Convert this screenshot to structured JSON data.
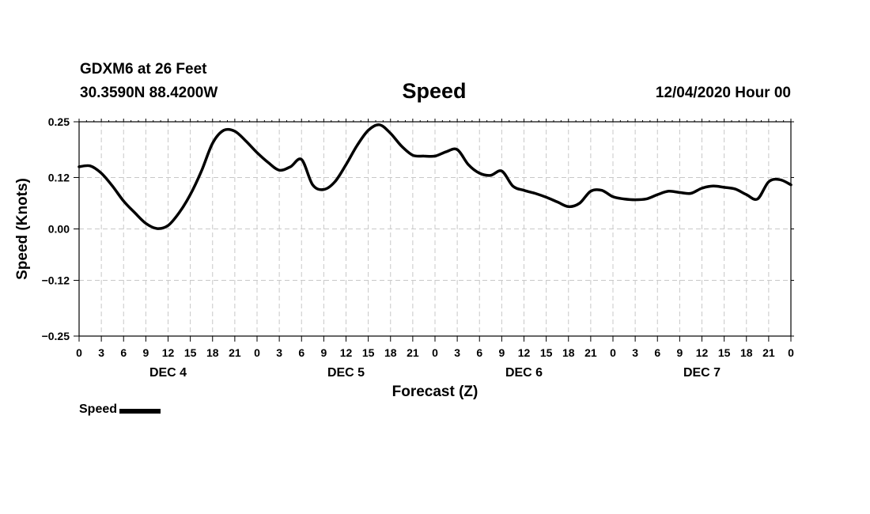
{
  "header": {
    "station": "GDXM6 at 26 Feet",
    "coords": "30.3590N 88.4200W",
    "title": "Speed",
    "runtime": "12/04/2020 Hour 00"
  },
  "legend": {
    "label": "Speed",
    "color": "#000000"
  },
  "chart_data": {
    "type": "line",
    "title": "Speed",
    "xlabel": "Forecast (Z)",
    "ylabel": "Speed (Knots)",
    "xlim": [
      0,
      96
    ],
    "ylim": [
      -0.25,
      0.25
    ],
    "yticks": [
      -0.25,
      -0.12,
      0.0,
      0.12,
      0.25
    ],
    "ytick_labels": [
      "−0.25",
      "−0.12",
      "0.00",
      "0.12",
      "0.25"
    ],
    "xticks": [
      0,
      3,
      6,
      9,
      12,
      15,
      18,
      21,
      24,
      27,
      30,
      33,
      36,
      39,
      42,
      45,
      48,
      51,
      54,
      57,
      60,
      63,
      66,
      69,
      72,
      75,
      78,
      81,
      84,
      87,
      90,
      93,
      96
    ],
    "xtick_labels": [
      "0",
      "3",
      "6",
      "9",
      "12",
      "15",
      "18",
      "21",
      "0",
      "3",
      "6",
      "9",
      "12",
      "15",
      "18",
      "21",
      "0",
      "3",
      "6",
      "9",
      "12",
      "15",
      "18",
      "21",
      "0",
      "3",
      "6",
      "9",
      "12",
      "15",
      "18",
      "21",
      "0"
    ],
    "day_labels": [
      {
        "label": "DEC 4",
        "x": 12
      },
      {
        "label": "DEC 5",
        "x": 36
      },
      {
        "label": "DEC 6",
        "x": 60
      },
      {
        "label": "DEC 7",
        "x": 84
      }
    ],
    "grid": true,
    "series": [
      {
        "name": "Speed",
        "x": [
          0,
          1.5,
          3,
          4.5,
          6,
          7.5,
          9,
          10.5,
          12,
          13.5,
          15,
          16.5,
          18,
          19.5,
          21,
          22.5,
          24,
          25.5,
          27,
          28.5,
          30,
          31.5,
          33,
          34.5,
          36,
          37.5,
          39,
          40.5,
          42,
          43.5,
          45,
          46.5,
          48,
          49.5,
          51,
          52.5,
          54,
          55.5,
          57,
          58.5,
          60,
          61.5,
          63,
          64.5,
          66,
          67.5,
          69,
          70.5,
          72,
          73.5,
          75,
          76.5,
          78,
          79.5,
          81,
          82.5,
          84,
          85.5,
          87,
          88.5,
          90,
          91.5,
          93,
          94.5,
          96
        ],
        "y": [
          0.145,
          0.147,
          0.13,
          0.1,
          0.065,
          0.038,
          0.013,
          0.001,
          0.008,
          0.038,
          0.08,
          0.135,
          0.2,
          0.23,
          0.228,
          0.205,
          0.178,
          0.155,
          0.137,
          0.145,
          0.162,
          0.103,
          0.092,
          0.11,
          0.15,
          0.195,
          0.23,
          0.243,
          0.223,
          0.193,
          0.172,
          0.17,
          0.17,
          0.18,
          0.185,
          0.15,
          0.13,
          0.125,
          0.135,
          0.1,
          0.09,
          0.083,
          0.074,
          0.063,
          0.052,
          0.06,
          0.088,
          0.09,
          0.075,
          0.07,
          0.068,
          0.07,
          0.08,
          0.088,
          0.085,
          0.083,
          0.095,
          0.1,
          0.097,
          0.093,
          0.08,
          0.07,
          0.11,
          0.115,
          0.103
        ]
      }
    ]
  }
}
